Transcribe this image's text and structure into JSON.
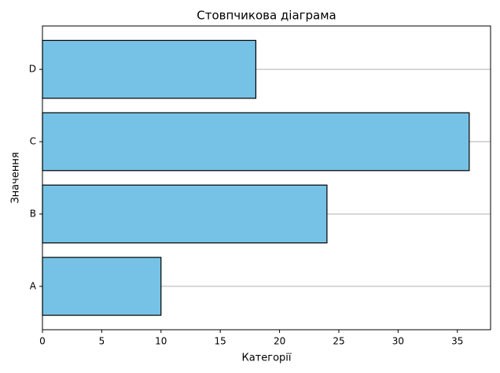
{
  "chart_data": {
    "type": "barh",
    "title": "Стовпчикова діаграма",
    "x_label": "Категорії",
    "y_label": "Значення",
    "categories": [
      "A",
      "B",
      "C",
      "D"
    ],
    "values": [
      10,
      24,
      36,
      18
    ],
    "color": "#76c2e6",
    "xlim": [
      0,
      37.8
    ],
    "xticks": [
      0,
      5,
      10,
      15,
      20,
      25,
      30,
      35
    ],
    "grid": true
  }
}
